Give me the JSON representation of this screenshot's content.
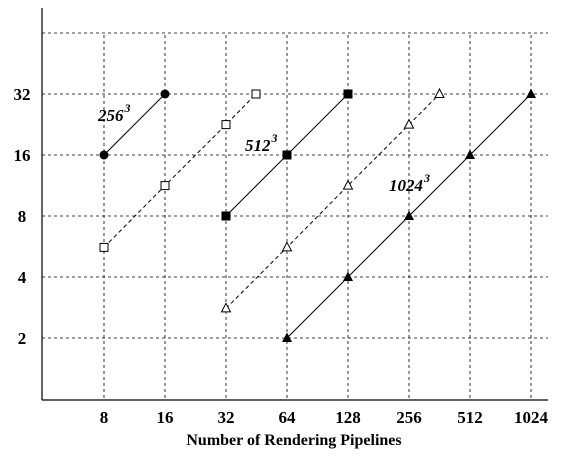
{
  "chart_data": {
    "type": "line",
    "xlabel": "Number of Rendering Pipelines",
    "ylabel": "",
    "x_scale": "log2",
    "y_scale": "log2",
    "x_ticks": [
      "8",
      "16",
      "32",
      "64",
      "128",
      "256",
      "512",
      "1024"
    ],
    "y_ticks": [
      "2",
      "4",
      "8",
      "16",
      "32"
    ],
    "xlim": [
      4,
      1024
    ],
    "ylim": [
      1,
      64
    ],
    "grid": true,
    "series": [
      {
        "name": "256",
        "label_exponent": "3",
        "marker": "filled-circle",
        "line": "solid",
        "x": [
          8,
          16
        ],
        "y": [
          16,
          32
        ]
      },
      {
        "name": "",
        "marker": "open-square",
        "line": "dashed",
        "x": [
          8,
          16,
          32,
          45
        ],
        "y": [
          5.6,
          11.3,
          22.6,
          32
        ]
      },
      {
        "name": "512",
        "label_exponent": "3",
        "marker": "filled-square",
        "line": "solid",
        "x": [
          32,
          64,
          128
        ],
        "y": [
          8,
          16,
          32
        ]
      },
      {
        "name": "",
        "marker": "open-triangle",
        "line": "dashed",
        "x": [
          32,
          64,
          128,
          256,
          362
        ],
        "y": [
          2.8,
          5.6,
          11.3,
          22.6,
          32
        ]
      },
      {
        "name": "1024",
        "label_exponent": "3",
        "marker": "filled-triangle",
        "line": "solid",
        "x": [
          64,
          128,
          256,
          512,
          1024
        ],
        "y": [
          2,
          4,
          8,
          16,
          32
        ]
      }
    ]
  }
}
